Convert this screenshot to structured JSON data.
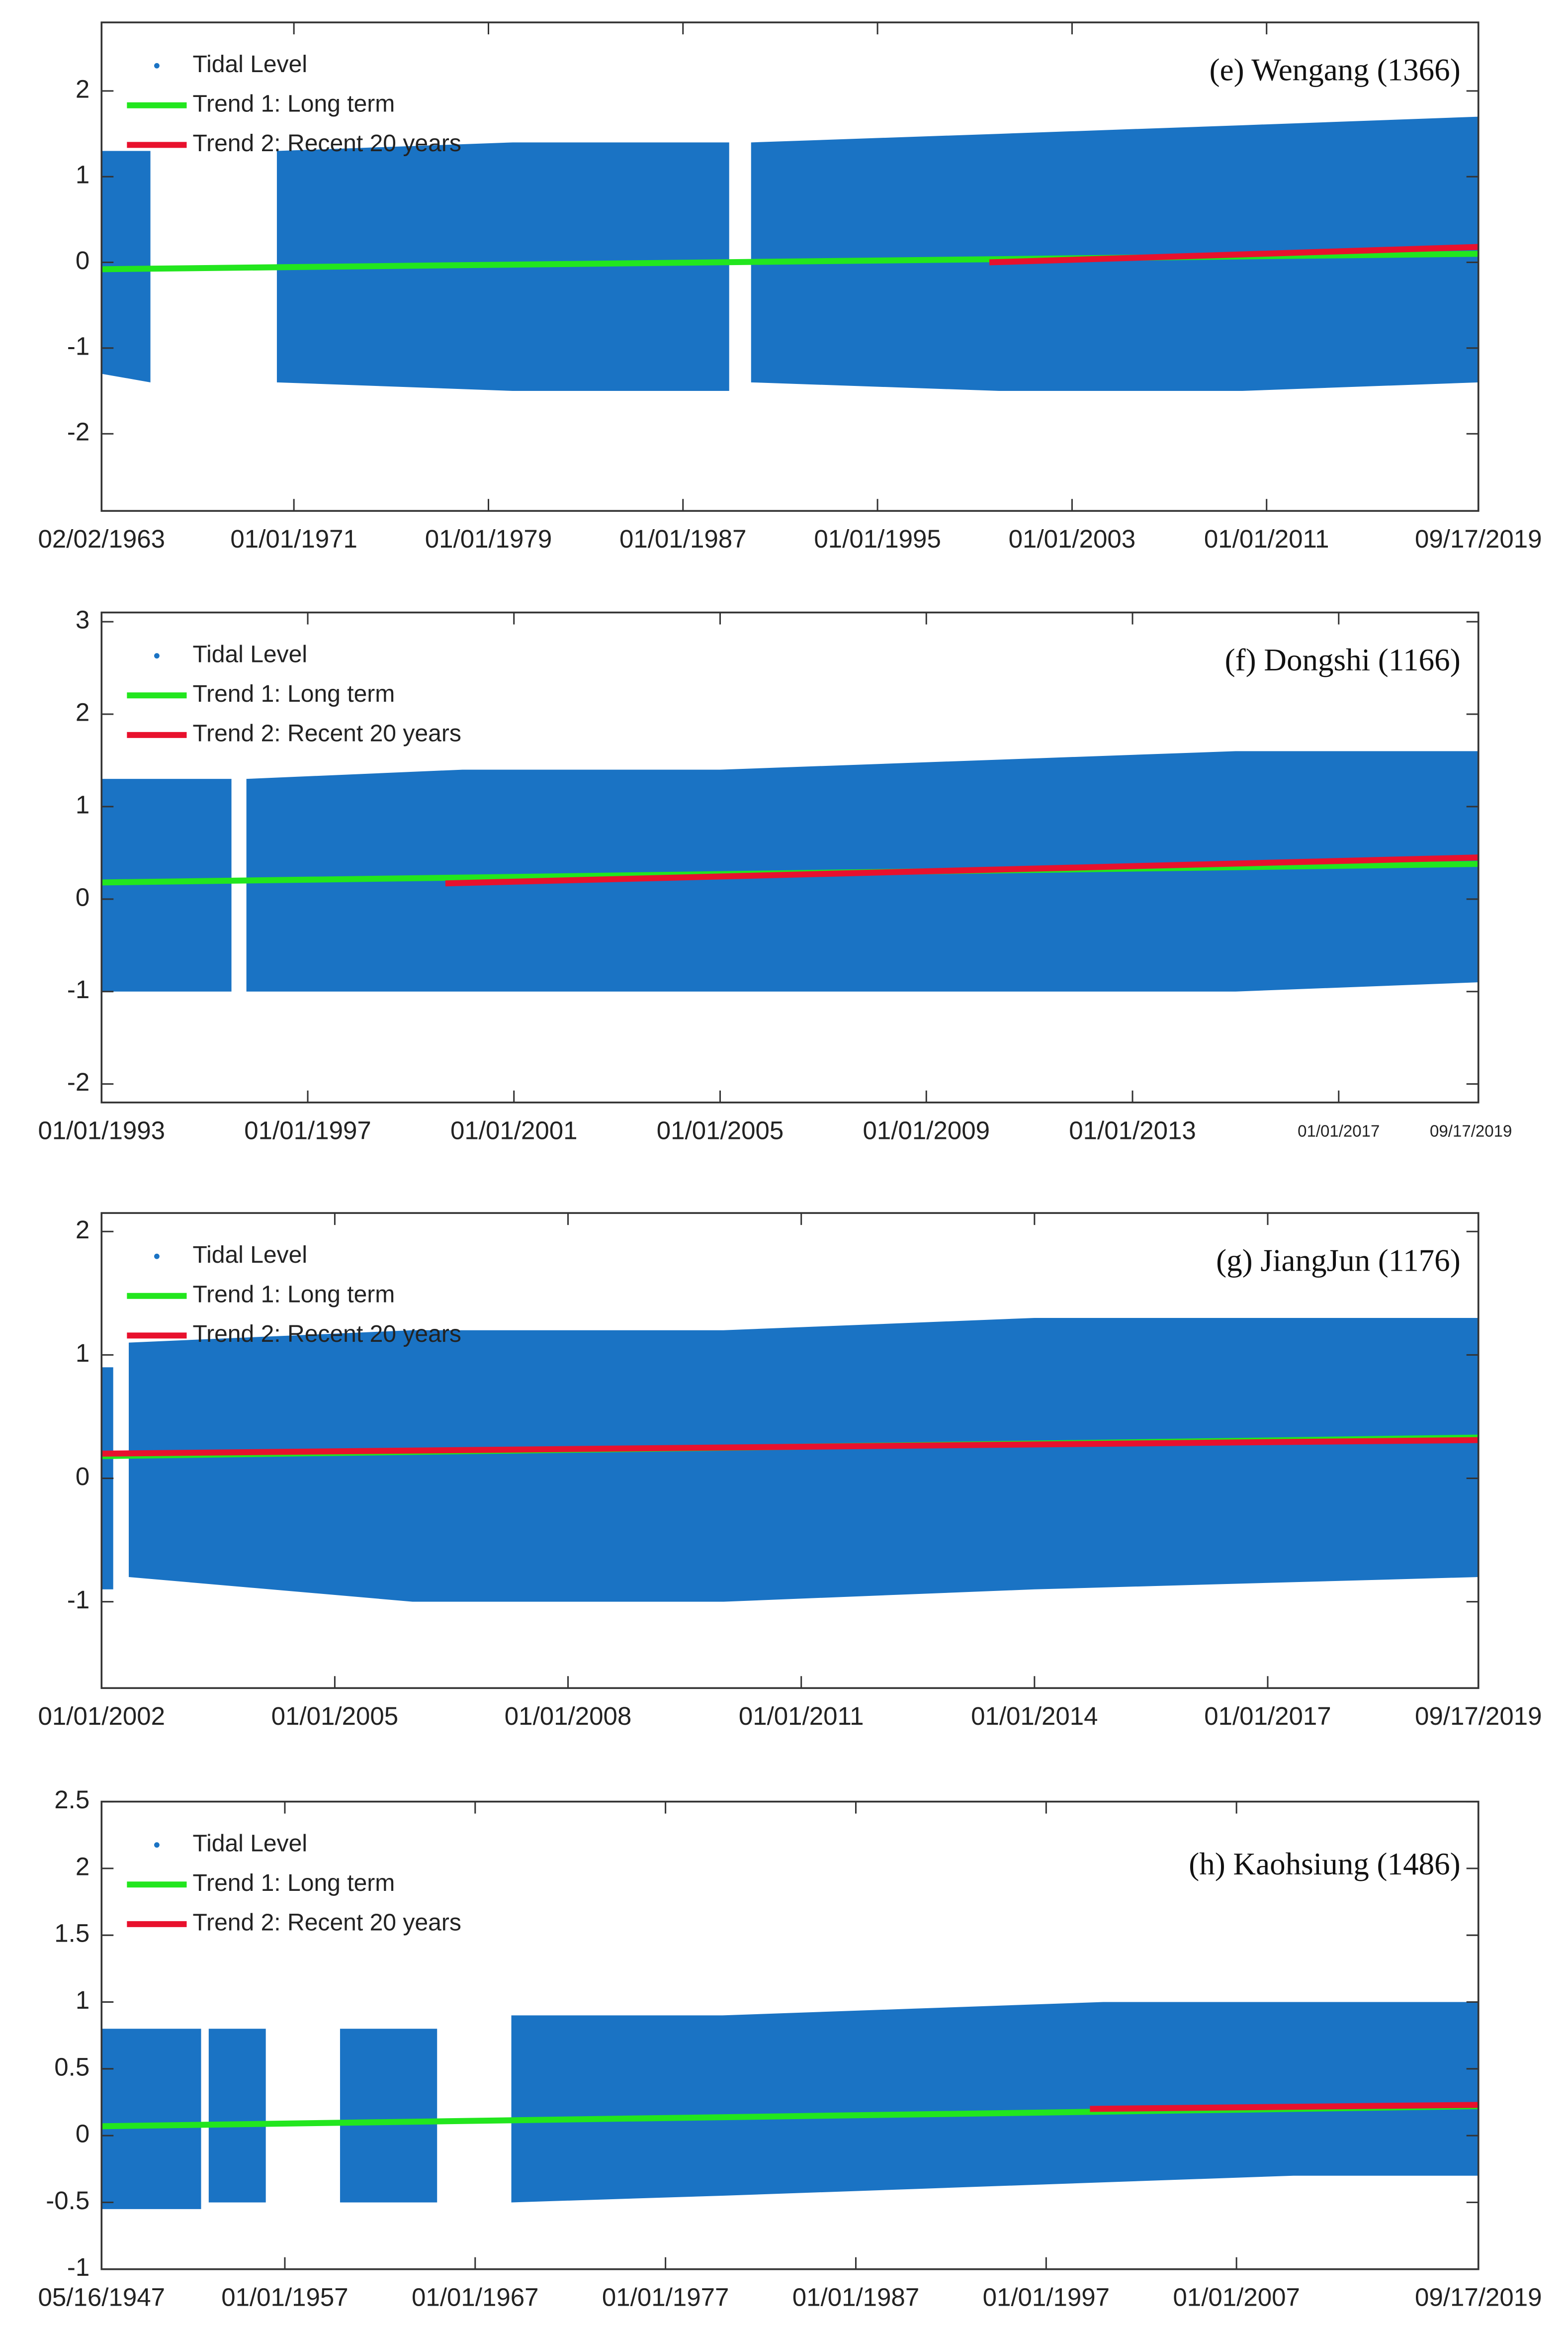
{
  "chart_data": [
    {
      "type": "scatter",
      "title": "(e) Wengang (1366)",
      "xlim": [
        1963.09,
        2019.71
      ],
      "xticks": [
        {
          "value": 1963.09,
          "label": "02/02/1963"
        },
        {
          "value": 1971.0,
          "label": "01/01/1971"
        },
        {
          "value": 1979.0,
          "label": "01/01/1979"
        },
        {
          "value": 1987.0,
          "label": "01/01/1987"
        },
        {
          "value": 1995.0,
          "label": "01/01/1995"
        },
        {
          "value": 2003.0,
          "label": "01/01/2003"
        },
        {
          "value": 2011.0,
          "label": "01/01/2011"
        },
        {
          "value": 2019.71,
          "label": "09/17/2019"
        }
      ],
      "ylim": [
        -2.9,
        2.8
      ],
      "yticks": [
        -2,
        -1,
        0,
        1,
        2
      ],
      "series": [
        {
          "name": "Tidal Level",
          "color": "#1a73c4",
          "x": [
            1963.09,
            1965.1,
            null,
            1970.3,
            1980,
            1988.9,
            null,
            1989.8,
            2000,
            2010,
            2019.71
          ],
          "values": [
            1.3,
            1.3,
            null,
            1.3,
            1.4,
            1.4,
            null,
            1.4,
            1.5,
            1.6,
            1.7
          ],
          "lower": [
            -1.3,
            -1.4,
            null,
            -1.4,
            -1.5,
            -1.5,
            null,
            -1.4,
            -1.5,
            -1.5,
            -1.4
          ]
        },
        {
          "name": "Trend 1: Long term",
          "color": "#22e61e",
          "x": [
            1963.09,
            2019.71
          ],
          "values": [
            -0.08,
            0.1
          ]
        },
        {
          "name": "Trend 2: Recent 20 years",
          "color": "#e8112d",
          "x": [
            1999.6,
            2019.71
          ],
          "values": [
            0.0,
            0.18
          ]
        }
      ]
    },
    {
      "type": "scatter",
      "title": "(f) Dongshi (1166)",
      "xlim": [
        1993.0,
        2019.71
      ],
      "xticks": [
        {
          "value": 1993.0,
          "label": "01/01/1993"
        },
        {
          "value": 1997.0,
          "label": "01/01/1997"
        },
        {
          "value": 2001.0,
          "label": "01/01/2001"
        },
        {
          "value": 2005.0,
          "label": "01/01/2005"
        },
        {
          "value": 2009.0,
          "label": "01/01/2009"
        },
        {
          "value": 2013.0,
          "label": "01/01/2013"
        },
        {
          "value": 2017.0,
          "label": "01/01/2017"
        },
        {
          "value": 2019.71,
          "label": "09/17/2019"
        }
      ],
      "ylim": [
        -2.2,
        3.1
      ],
      "yticks": [
        -2,
        -1,
        0,
        1,
        2,
        3
      ],
      "series": [
        {
          "name": "Tidal Level",
          "color": "#1a73c4",
          "x": [
            1993.0,
            1995.52,
            null,
            1995.81,
            2000,
            2005,
            2010,
            2015,
            2019.71
          ],
          "values": [
            1.3,
            1.3,
            null,
            1.3,
            1.4,
            1.4,
            1.5,
            1.6,
            1.6
          ],
          "lower": [
            -1.0,
            -1.0,
            null,
            -1.0,
            -1.0,
            -1.0,
            -1.0,
            -1.0,
            -0.9
          ]
        },
        {
          "name": "Trend 1: Long term",
          "color": "#22e61e",
          "x": [
            1993.0,
            2019.71
          ],
          "values": [
            0.18,
            0.38
          ]
        },
        {
          "name": "Trend 2: Recent 20 years",
          "color": "#e8112d",
          "x": [
            1999.67,
            2019.71
          ],
          "values": [
            0.17,
            0.45
          ]
        }
      ]
    },
    {
      "type": "scatter",
      "title": "(g) JiangJun (1176)",
      "xlim": [
        2002.0,
        2019.71
      ],
      "xticks": [
        {
          "value": 2002.0,
          "label": "01/01/2002"
        },
        {
          "value": 2005.0,
          "label": "01/01/2005"
        },
        {
          "value": 2008.0,
          "label": "01/01/2008"
        },
        {
          "value": 2011.0,
          "label": "01/01/2011"
        },
        {
          "value": 2014.0,
          "label": "01/01/2014"
        },
        {
          "value": 2017.0,
          "label": "01/01/2017"
        },
        {
          "value": 2019.71,
          "label": "09/17/2019"
        }
      ],
      "ylim": [
        -1.7,
        2.15
      ],
      "yticks": [
        -1,
        0,
        1,
        2
      ],
      "series": [
        {
          "name": "Tidal Level",
          "color": "#1a73c4",
          "x": [
            2002.0,
            2002.15,
            null,
            2002.35,
            2006,
            2010,
            2014,
            2019.71
          ],
          "values": [
            0.9,
            0.9,
            null,
            1.1,
            1.2,
            1.2,
            1.3,
            1.3
          ],
          "lower": [
            -0.9,
            -0.9,
            null,
            -0.8,
            -1.0,
            -1.0,
            -0.9,
            -0.8
          ]
        },
        {
          "name": "Trend 1: Long term",
          "color": "#22e61e",
          "x": [
            2002.0,
            2019.71
          ],
          "values": [
            0.18,
            0.33
          ]
        },
        {
          "name": "Trend 2: Recent 20 years",
          "color": "#e8112d",
          "x": [
            2002.0,
            2019.71
          ],
          "values": [
            0.2,
            0.31
          ]
        }
      ]
    },
    {
      "type": "scatter",
      "title": "(h) Kaohsiung (1486)",
      "xlim": [
        1947.37,
        2019.71
      ],
      "xticks": [
        {
          "value": 1947.37,
          "label": "05/16/1947"
        },
        {
          "value": 1957.0,
          "label": "01/01/1957"
        },
        {
          "value": 1967.0,
          "label": "01/01/1967"
        },
        {
          "value": 1977.0,
          "label": "01/01/1977"
        },
        {
          "value": 1987.0,
          "label": "01/01/1987"
        },
        {
          "value": 1997.0,
          "label": "01/01/1997"
        },
        {
          "value": 2007.0,
          "label": "01/01/2007"
        },
        {
          "value": 2019.71,
          "label": "09/17/2019"
        }
      ],
      "ylim": [
        -1,
        2.5
      ],
      "yticks": [
        -1,
        -0.5,
        0,
        0.5,
        1,
        1.5,
        2,
        2.5
      ],
      "series": [
        {
          "name": "Tidal Level",
          "color": "#1a73c4",
          "x": [
            1947.37,
            1952.6,
            null,
            1953.0,
            1956.0,
            null,
            1959.9,
            1965.0,
            null,
            1968.9,
            1980,
            1990,
            2000,
            2010,
            2019.71
          ],
          "values": [
            0.8,
            0.8,
            null,
            0.8,
            0.8,
            null,
            0.8,
            0.8,
            null,
            0.9,
            0.9,
            0.95,
            1.0,
            1.0,
            1.0
          ],
          "lower": [
            -0.55,
            -0.55,
            null,
            -0.5,
            -0.5,
            null,
            -0.5,
            -0.5,
            null,
            -0.5,
            -0.45,
            -0.4,
            -0.35,
            -0.3,
            -0.3
          ]
        },
        {
          "name": "Trend 1: Long term",
          "color": "#22e61e",
          "x": [
            1947.37,
            2019.71
          ],
          "values": [
            0.07,
            0.22
          ]
        },
        {
          "name": "Trend 2: Recent 20 years",
          "color": "#e8112d",
          "x": [
            1999.3,
            2019.71
          ],
          "values": [
            0.2,
            0.23
          ]
        }
      ]
    }
  ]
}
